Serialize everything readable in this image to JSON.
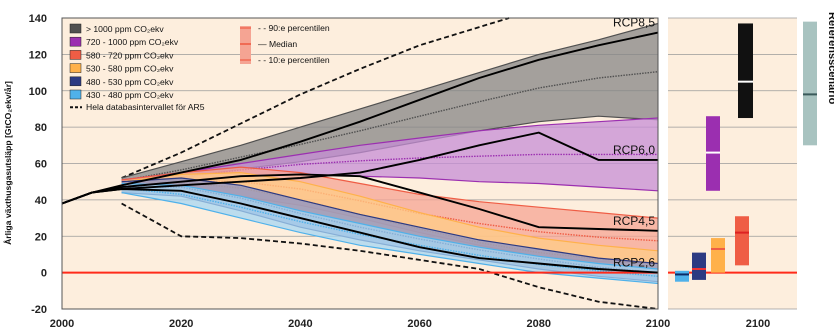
{
  "chart_data": {
    "type": "area",
    "ylabel": "Årliga växthusgasutsläpp [GtCO₂ekv/år]",
    "ylim": [
      -20,
      140
    ],
    "xlim": [
      2000,
      2100
    ],
    "x_ticks": [
      "2000",
      "2020",
      "2040",
      "2060",
      "2080",
      "2100"
    ],
    "y_ticks": [
      "-20",
      "0",
      "20",
      "40",
      "60",
      "80",
      "100",
      "120",
      "140"
    ],
    "grid": true,
    "colors": {
      "background": "#fdeedd",
      "zero_line": "#ff2a1a",
      "grid": "#9a9a9a"
    },
    "legend_categories": [
      {
        "label": "> 1000 ppm CO₂ekv",
        "color": "#505050",
        "light": "#858585"
      },
      {
        "label": "720 - 1000 ppm CO₂ekv",
        "color": "#9b2fb0",
        "light": "#c68ed6"
      },
      {
        "label": "580 - 720 ppm CO₂ekv",
        "color": "#ef5d45",
        "light": "#f5a493"
      },
      {
        "label": "530 - 580 ppm CO₂ekv",
        "color": "#ffb14a",
        "light": "#ffcc86"
      },
      {
        "label": "480 - 530 ppm CO₂ekv",
        "color": "#2c3a82",
        "light": "#8892c6"
      },
      {
        "label": "430 - 480 ppm CO₂ekv",
        "color": "#4fb1ea",
        "light": "#a6d6f2"
      }
    ],
    "legend_database": "Hela databasintervallet för AR5",
    "legend_percentiles": [
      "90:e percentilen",
      "Median",
      "10:e percentilen"
    ],
    "series": [
      {
        "name": "> 1000 ppm CO₂ekv",
        "x": [
          2010,
          2020,
          2030,
          2040,
          2050,
          2060,
          2070,
          2080,
          2090,
          2100
        ],
        "p10": [
          49,
          52,
          57,
          61,
          66,
          72,
          78,
          83,
          86,
          84
        ],
        "p90": [
          52,
          61,
          70,
          80,
          90,
          100,
          110,
          120,
          128,
          137
        ]
      },
      {
        "name": "720 - 1000 ppm CO₂ekv",
        "x": [
          2010,
          2020,
          2030,
          2040,
          2050,
          2060,
          2070,
          2080,
          2090,
          2100
        ],
        "p10": [
          47,
          50,
          53,
          54,
          53,
          52,
          50,
          49,
          47,
          45
        ],
        "p90": [
          51,
          55,
          60,
          65,
          70,
          74,
          78,
          81,
          83,
          85
        ]
      },
      {
        "name": "580 - 720 ppm CO₂ekv",
        "x": [
          2010,
          2020,
          2030,
          2040,
          2050,
          2060,
          2070,
          2080,
          2090,
          2100
        ],
        "p10": [
          45,
          46,
          42,
          37,
          30,
          22,
          15,
          9,
          6,
          5
        ],
        "p90": [
          51,
          55,
          58,
          55,
          49,
          43,
          39,
          36,
          33,
          30
        ]
      },
      {
        "name": "530 - 580 ppm CO₂ekv",
        "x": [
          2010,
          2020,
          2030,
          2040,
          2050,
          2060,
          2070,
          2080,
          2090,
          2100
        ],
        "p10": [
          45,
          45,
          38,
          30,
          22,
          15,
          8,
          3,
          0,
          -2
        ],
        "p90": [
          50,
          54,
          55,
          50,
          42,
          33,
          25,
          19,
          15,
          12
        ]
      },
      {
        "name": "480 - 530 ppm CO₂ekv",
        "x": [
          2010,
          2020,
          2030,
          2040,
          2050,
          2060,
          2070,
          2080,
          2090,
          2100
        ],
        "p10": [
          44,
          42,
          34,
          25,
          18,
          12,
          7,
          2,
          -2,
          -5
        ],
        "p90": [
          50,
          52,
          48,
          40,
          32,
          25,
          18,
          13,
          8,
          5
        ]
      },
      {
        "name": "430 - 480 ppm CO₂ekv",
        "x": [
          2010,
          2020,
          2030,
          2040,
          2050,
          2060,
          2070,
          2080,
          2090,
          2100
        ],
        "p10": [
          44,
          38,
          30,
          22,
          15,
          10,
          5,
          0,
          -3,
          -6
        ],
        "p90": [
          49,
          48,
          42,
          34,
          27,
          20,
          14,
          9,
          5,
          2
        ]
      }
    ],
    "database_range": {
      "upper": {
        "x": [
          2010,
          2020,
          2030,
          2040,
          2050,
          2060,
          2070,
          2075
        ],
        "y": [
          52,
          66,
          82,
          98,
          112,
          125,
          135,
          140
        ]
      },
      "lower": {
        "x": [
          2010,
          2020,
          2030,
          2040,
          2050,
          2060,
          2070,
          2080,
          2090,
          2100
        ],
        "y": [
          38,
          20,
          19,
          16,
          12,
          7,
          2,
          -8,
          -16,
          -28
        ]
      }
    },
    "rcp_pathways": [
      {
        "label": "RCP8,5",
        "x": [
          2000,
          2005,
          2010,
          2020,
          2030,
          2040,
          2050,
          2060,
          2070,
          2080,
          2090,
          2100
        ],
        "y": [
          38,
          44,
          48,
          55,
          62,
          72,
          83,
          95,
          107,
          117,
          125,
          132
        ]
      },
      {
        "label": "RCP6,0",
        "x": [
          2000,
          2005,
          2010,
          2020,
          2030,
          2040,
          2050,
          2060,
          2070,
          2080,
          2090,
          2100
        ],
        "y": [
          38,
          44,
          46,
          48,
          50,
          52,
          55,
          62,
          70,
          77,
          62,
          62
        ]
      },
      {
        "label": "RCP4,5",
        "x": [
          2000,
          2005,
          2010,
          2020,
          2030,
          2040,
          2050,
          2060,
          2070,
          2080,
          2090,
          2100
        ],
        "y": [
          38,
          44,
          47,
          50,
          53,
          54,
          53,
          44,
          35,
          25,
          24,
          23
        ]
      },
      {
        "label": "RCP2,6",
        "x": [
          2000,
          2005,
          2010,
          2020,
          2030,
          2040,
          2050,
          2060,
          2070,
          2080,
          2090,
          2100
        ],
        "y": [
          38,
          44,
          46,
          45,
          38,
          30,
          22,
          14,
          8,
          5,
          2,
          0
        ]
      }
    ],
    "panel_2100": {
      "xlabel": "2100",
      "bars": [
        {
          "category": "430 - 480 ppm CO₂ekv",
          "low": -5,
          "median": -1,
          "high": 1
        },
        {
          "category": "480 - 530 ppm CO₂ekv",
          "low": -4,
          "median": 2,
          "high": 11
        },
        {
          "category": "530 - 580 ppm CO₂ekv",
          "low": 0,
          "median": 13,
          "high": 19
        },
        {
          "category": "580 - 720 ppm CO₂ekv",
          "low": 4,
          "median": 22,
          "high": 31
        },
        {
          "category": "720 - 1000 ppm CO₂ekv",
          "low": 45,
          "median": 66,
          "high": 86
        },
        {
          "category": "> 1000 ppm CO₂ekv",
          "low": 85,
          "median": 105,
          "high": 137
        }
      ],
      "reference": {
        "label": "Referensscenario",
        "low": 70,
        "median": 98,
        "high": 138,
        "color": "#a8c3c0"
      }
    }
  }
}
